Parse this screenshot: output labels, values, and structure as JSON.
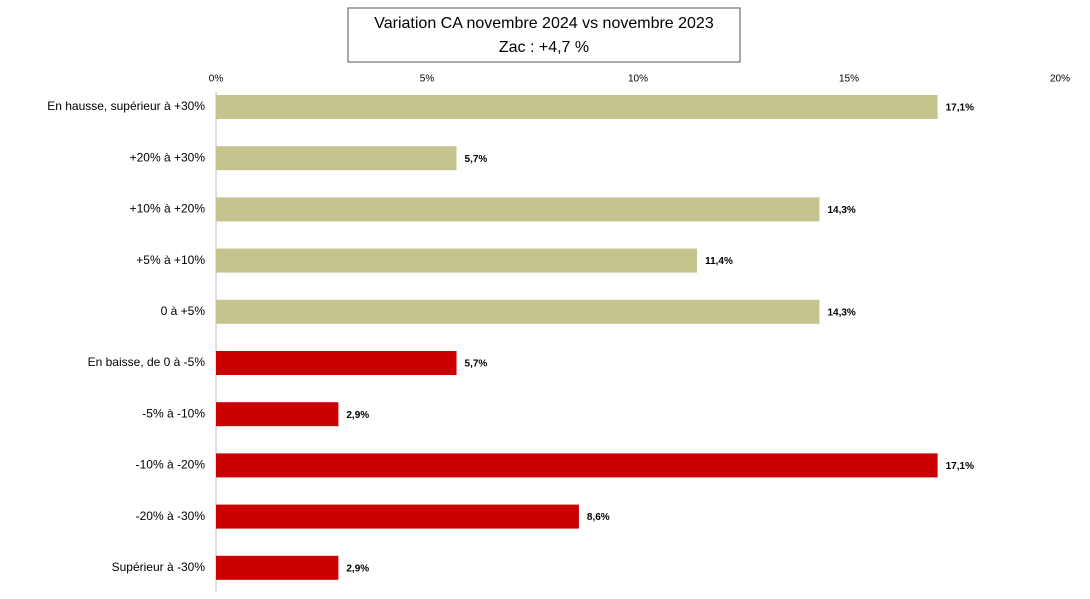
{
  "chart_data": {
    "type": "bar",
    "orientation": "horizontal",
    "title": "Variation CA novembre 2024 vs novembre 2023",
    "subtitle": "Zac : +4,7 %",
    "categories": [
      "En hausse, supérieur à +30%",
      "+20% à +30%",
      "+10% à +20%",
      "+5% à +10%",
      "0 à +5%",
      "En baisse, de 0 à -5%",
      "-5% à -10%",
      "-10% à -20%",
      "-20% à -30%",
      "Supérieur à -30%"
    ],
    "values": [
      17.1,
      5.7,
      14.3,
      11.4,
      14.3,
      5.7,
      2.9,
      17.1,
      8.6,
      2.9
    ],
    "value_labels": [
      "17,1%",
      "5,7%",
      "14,3%",
      "11,4%",
      "14,3%",
      "5,7%",
      "2,9%",
      "17,1%",
      "8,6%",
      "2,9%"
    ],
    "colors": [
      "#c5c48f",
      "#c5c48f",
      "#c5c48f",
      "#c5c48f",
      "#c5c48f",
      "#cc0000",
      "#cc0000",
      "#cc0000",
      "#cc0000",
      "#cc0000"
    ],
    "xlim": [
      0,
      20
    ],
    "xticks": [
      {
        "value": 0,
        "label": "0%"
      },
      {
        "value": 5,
        "label": "5%"
      },
      {
        "value": 10,
        "label": "10%"
      },
      {
        "value": 15,
        "label": "15%"
      },
      {
        "value": 20,
        "label": "20%"
      }
    ],
    "grid": false
  }
}
